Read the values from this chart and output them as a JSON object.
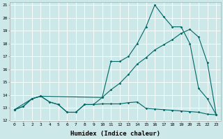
{
  "xlabel": "Humidex (Indice chaleur)",
  "ylabel": "",
  "xlim": [
    -0.5,
    23.5
  ],
  "ylim": [
    12,
    21.2
  ],
  "xticks": [
    0,
    1,
    2,
    3,
    4,
    5,
    6,
    7,
    8,
    9,
    10,
    11,
    12,
    13,
    14,
    15,
    16,
    17,
    18,
    19,
    20,
    21,
    22,
    23
  ],
  "yticks": [
    12,
    13,
    14,
    15,
    16,
    17,
    18,
    19,
    20,
    21
  ],
  "bg_color": "#cce8e8",
  "line_color": "#006666",
  "grid_color": "#ffffff",
  "line1_x": [
    0,
    1,
    2,
    3,
    4,
    5,
    6,
    7,
    8,
    9,
    10,
    11,
    12,
    13,
    14,
    15,
    16,
    17,
    18,
    19,
    20,
    21,
    22,
    23
  ],
  "line1_y": [
    12.85,
    13.1,
    13.7,
    13.9,
    13.45,
    13.25,
    12.65,
    12.65,
    13.25,
    13.25,
    13.3,
    13.3,
    13.3,
    13.4,
    13.45,
    12.95,
    12.9,
    12.85,
    12.8,
    12.75,
    12.7,
    12.65,
    12.5,
    12.45
  ],
  "line2_x": [
    0,
    1,
    2,
    3,
    4,
    5,
    6,
    7,
    8,
    9,
    10,
    11,
    12,
    13,
    14,
    15,
    16,
    17,
    18,
    19,
    20,
    21,
    22,
    23
  ],
  "line2_y": [
    12.85,
    13.1,
    13.7,
    13.9,
    13.45,
    13.25,
    12.65,
    12.65,
    13.25,
    13.25,
    13.8,
    14.4,
    14.9,
    15.6,
    16.4,
    16.9,
    17.5,
    17.9,
    18.3,
    18.8,
    19.1,
    18.5,
    16.5,
    12.45
  ],
  "line3_x": [
    0,
    2,
    3,
    10,
    11,
    12,
    13,
    14,
    15,
    16,
    17,
    18,
    19,
    20,
    21,
    22,
    23
  ],
  "line3_y": [
    12.85,
    13.7,
    13.9,
    13.8,
    16.6,
    16.6,
    17.0,
    18.0,
    19.3,
    21.0,
    20.1,
    19.3,
    19.3,
    18.0,
    14.5,
    13.7,
    12.45
  ]
}
